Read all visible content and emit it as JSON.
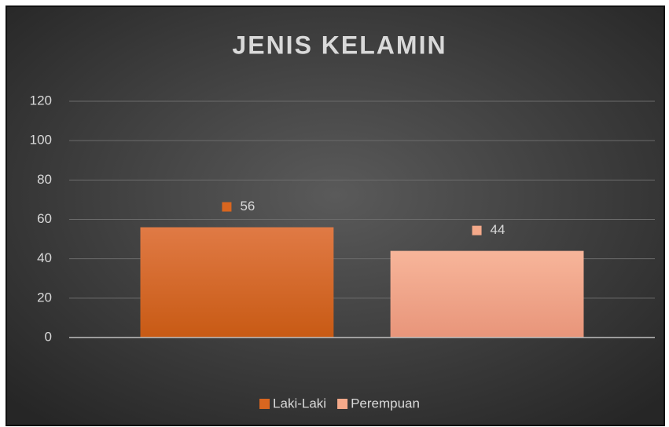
{
  "chart_data": {
    "type": "bar",
    "title": "JENIS KELAMIN",
    "categories": [
      null
    ],
    "series": [
      {
        "name": "Laki-Laki",
        "color": "#d9661f",
        "values": [
          56
        ]
      },
      {
        "name": "Perempuan",
        "color": "#f4a98a",
        "values": [
          44
        ]
      }
    ],
    "ylim": [
      0,
      120
    ],
    "yticks": [
      0,
      20,
      40,
      60,
      80,
      100,
      120
    ],
    "grid": true,
    "legend": "bottom",
    "data_labels": true
  }
}
